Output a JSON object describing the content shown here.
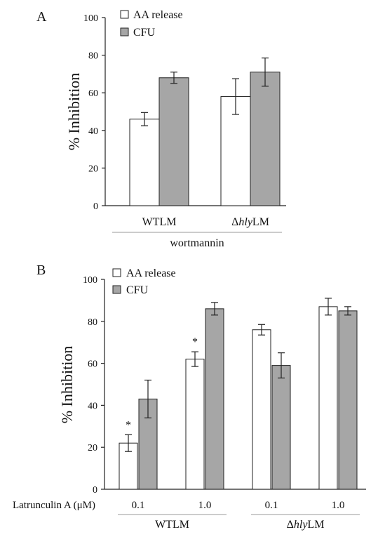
{
  "chart_data": [
    {
      "type": "bar",
      "panel_label": "A",
      "ylabel": "% Inhibition",
      "ylim": [
        0,
        100
      ],
      "yticks": [
        0,
        20,
        40,
        60,
        80,
        100
      ],
      "grid": false,
      "legend_position": "top-left",
      "categories": [
        "WTLM",
        "ΔhlyLM"
      ],
      "category_parts": [
        {
          "pre": "",
          "italic": "",
          "post": "WTLM"
        },
        {
          "pre": "Δ",
          "italic": "hly",
          "post": "LM"
        }
      ],
      "group_labels": [
        {
          "label": "wortmannin",
          "span": [
            0,
            1
          ]
        }
      ],
      "series": [
        {
          "name": "AA release",
          "color": "#ffffff",
          "values": [
            46,
            58
          ],
          "errors": [
            3.5,
            9.5
          ]
        },
        {
          "name": "CFU",
          "color": "#a6a6a6",
          "values": [
            68,
            71
          ],
          "errors": [
            3,
            7.5
          ]
        }
      ]
    },
    {
      "type": "bar",
      "panel_label": "B",
      "ylabel": "% Inhibition",
      "ylim": [
        0,
        100
      ],
      "yticks": [
        0,
        20,
        40,
        60,
        80,
        100
      ],
      "grid": false,
      "legend_position": "top-left",
      "row_label": "Latrunculin A (μM)",
      "categories": [
        "0.1",
        "1.0",
        "0.1",
        "1.0"
      ],
      "group_labels": [
        {
          "label": "WTLM",
          "parts": {
            "pre": "",
            "italic": "",
            "post": "WTLM"
          },
          "span": [
            0,
            1
          ]
        },
        {
          "label": "ΔhlyLM",
          "parts": {
            "pre": "Δ",
            "italic": "hly",
            "post": "LM"
          },
          "span": [
            2,
            3
          ]
        }
      ],
      "significance": [
        {
          "category_index": 0,
          "series_index": 0,
          "mark": "*"
        },
        {
          "category_index": 1,
          "series_index": 0,
          "mark": "*"
        }
      ],
      "series": [
        {
          "name": "AA release",
          "color": "#ffffff",
          "values": [
            22,
            62,
            76,
            87
          ],
          "errors": [
            4,
            3.5,
            2.5,
            4
          ]
        },
        {
          "name": "CFU",
          "color": "#a6a6a6",
          "values": [
            43,
            86,
            59,
            85
          ],
          "errors": [
            9,
            3,
            6,
            2
          ]
        }
      ]
    }
  ]
}
